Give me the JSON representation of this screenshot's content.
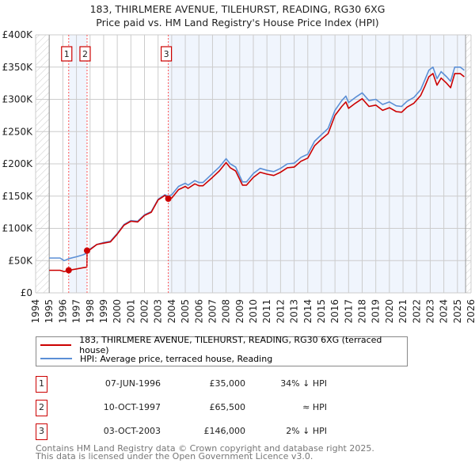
{
  "chart_data": {
    "type": "line",
    "title": "183, THIRLMERE AVENUE, TILEHURST, READING, RG30 6XG",
    "subtitle": "Price paid vs. HM Land Registry's House Price Index (HPI)",
    "xlim": [
      1994,
      2026
    ],
    "ylim": [
      0,
      400000
    ],
    "x_ticks": [
      "1994",
      "1995",
      "1996",
      "1997",
      "1998",
      "1999",
      "2000",
      "2001",
      "2002",
      "2003",
      "2004",
      "2005",
      "2006",
      "2007",
      "2008",
      "2009",
      "2010",
      "2011",
      "2012",
      "2013",
      "2014",
      "2015",
      "2016",
      "2017",
      "2018",
      "2019",
      "2020",
      "2021",
      "2022",
      "2023",
      "2024",
      "2025",
      "2026"
    ],
    "y_ticks": [
      {
        "v": 0,
        "label": "£0"
      },
      {
        "v": 50000,
        "label": "£50K"
      },
      {
        "v": 100000,
        "label": "£100K"
      },
      {
        "v": 150000,
        "label": "£150K"
      },
      {
        "v": 200000,
        "label": "£200K"
      },
      {
        "v": 250000,
        "label": "£250K"
      },
      {
        "v": 300000,
        "label": "£300K"
      },
      {
        "v": 350000,
        "label": "£350K"
      },
      {
        "v": 400000,
        "label": "£400K"
      }
    ],
    "grid": true,
    "series": [
      {
        "name": "183, THIRLMERE AVENUE, TILEHURST, READING, RG30 6XG (terraced house)",
        "color": "#cc0000",
        "x": [
          1995.0,
          1995.8,
          1996.1,
          1996.43,
          1997.0,
          1997.5,
          1997.77,
          1997.78,
          1998.0,
          1998.5,
          1999.0,
          1999.5,
          2000.0,
          2000.5,
          2001.0,
          2001.5,
          2002.0,
          2002.5,
          2003.0,
          2003.5,
          2003.75,
          2004.0,
          2004.5,
          2005.0,
          2005.2,
          2005.7,
          2006.0,
          2006.3,
          2007.0,
          2007.5,
          2008.0,
          2008.3,
          2008.7,
          2009.2,
          2009.5,
          2010.0,
          2010.5,
          2011.0,
          2011.5,
          2012.0,
          2012.5,
          2013.0,
          2013.5,
          2014.0,
          2014.5,
          2015.0,
          2015.5,
          2016.0,
          2016.5,
          2016.8,
          2017.0,
          2017.5,
          2018.0,
          2018.5,
          2019.0,
          2019.5,
          2020.0,
          2020.5,
          2020.9,
          2021.3,
          2021.8,
          2022.3,
          2022.6,
          2022.9,
          2023.2,
          2023.5,
          2023.8,
          2024.2,
          2024.5,
          2024.8,
          2025.2,
          2025.5
        ],
        "y": [
          35000,
          35000,
          33000,
          35000,
          37000,
          39000,
          40000,
          65500,
          67000,
          75000,
          77000,
          79000,
          91000,
          105000,
          111000,
          110000,
          120000,
          125000,
          144000,
          151000,
          146000,
          147000,
          160000,
          165000,
          162000,
          169000,
          166000,
          166000,
          179000,
          189000,
          202000,
          194000,
          189000,
          167000,
          167000,
          179000,
          187000,
          184000,
          182000,
          187000,
          194000,
          195000,
          204000,
          209000,
          228000,
          238000,
          247000,
          275000,
          289000,
          296000,
          286000,
          294000,
          301000,
          289000,
          291000,
          283000,
          287000,
          281000,
          280000,
          288000,
          294000,
          306000,
          320000,
          335000,
          340000,
          322000,
          333000,
          325000,
          318000,
          340000,
          340000,
          335000
        ]
      },
      {
        "name": "HPI: Average price, terraced house, Reading",
        "color": "#5b8fd6",
        "x": [
          1995.0,
          1995.8,
          1996.1,
          1996.43,
          1997.0,
          1997.5,
          1997.78,
          1998.0,
          1998.5,
          1999.0,
          1999.5,
          2000.0,
          2000.5,
          2001.0,
          2001.5,
          2002.0,
          2002.5,
          2003.0,
          2003.5,
          2003.75,
          2004.0,
          2004.5,
          2005.0,
          2005.2,
          2005.7,
          2006.0,
          2006.3,
          2007.0,
          2007.5,
          2008.0,
          2008.3,
          2008.7,
          2009.2,
          2009.5,
          2010.0,
          2010.5,
          2011.0,
          2011.5,
          2012.0,
          2012.5,
          2013.0,
          2013.5,
          2014.0,
          2014.5,
          2015.0,
          2015.5,
          2016.0,
          2016.5,
          2016.8,
          2017.0,
          2017.5,
          2018.0,
          2018.5,
          2019.0,
          2019.5,
          2020.0,
          2020.5,
          2020.9,
          2021.3,
          2021.8,
          2022.3,
          2022.6,
          2022.9,
          2023.2,
          2023.5,
          2023.8,
          2024.2,
          2024.5,
          2024.8,
          2025.2,
          2025.5
        ],
        "y": [
          54000,
          54000,
          50000,
          53000,
          56000,
          59000,
          62000,
          68000,
          75000,
          78000,
          80000,
          92000,
          106000,
          112000,
          111000,
          121000,
          126000,
          145000,
          152000,
          150000,
          152000,
          165000,
          170000,
          167000,
          174000,
          171000,
          171000,
          185000,
          195000,
          208000,
          200000,
          195000,
          172000,
          172000,
          185000,
          193000,
          190000,
          188000,
          193000,
          200000,
          201000,
          210000,
          215000,
          235000,
          245000,
          255000,
          283000,
          298000,
          305000,
          295000,
          303000,
          310000,
          298000,
          300000,
          292000,
          296000,
          290000,
          289000,
          297000,
          303000,
          315000,
          330000,
          345000,
          350000,
          332000,
          343000,
          335000,
          328000,
          350000,
          350000,
          345000
        ]
      }
    ],
    "sales": [
      {
        "id": "1",
        "x": 1996.43,
        "y": 35000,
        "date": "07-JUN-1996",
        "price": "£35,000",
        "relation": "34% ↓ HPI"
      },
      {
        "id": "2",
        "x": 1997.78,
        "y": 65500,
        "date": "10-OCT-1997",
        "price": "£65,500",
        "relation": "≈ HPI"
      },
      {
        "id": "3",
        "x": 2003.75,
        "y": 146000,
        "date": "03-OCT-2003",
        "price": "£146,000",
        "relation": "2% ↓ HPI"
      }
    ],
    "shaded_ranges": [
      [
        1996.43,
        1997.78
      ],
      [
        2003.75,
        2025.6
      ]
    ],
    "data_range": [
      1995,
      2025.6
    ]
  },
  "footer": {
    "line1": "Contains HM Land Registry data © Crown copyright and database right 2025.",
    "line2": "This data is licensed under the Open Government Licence v3.0."
  }
}
